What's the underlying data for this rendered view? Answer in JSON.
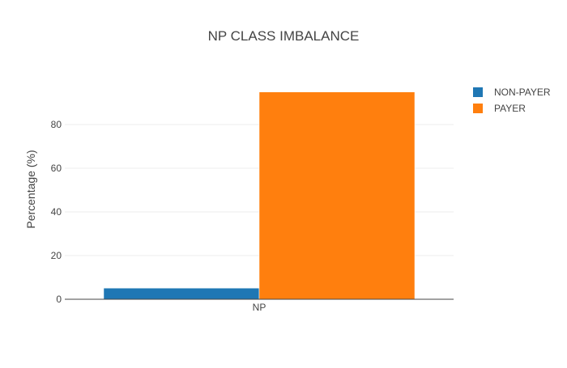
{
  "chart_data": {
    "type": "bar",
    "title": "NP CLASS IMBALANCE",
    "xlabel": "",
    "ylabel": "Percentage (%)",
    "categories": [
      "NP"
    ],
    "series": [
      {
        "name": "NON-PAYER",
        "values": [
          5.1
        ],
        "color": "#1f77b4"
      },
      {
        "name": "PAYER",
        "values": [
          94.9
        ],
        "color": "#ff7f0e"
      }
    ],
    "ylim": [
      0,
      100
    ],
    "yticks": [
      0,
      20,
      40,
      60,
      80
    ],
    "grid": true,
    "legend": "top-right"
  }
}
